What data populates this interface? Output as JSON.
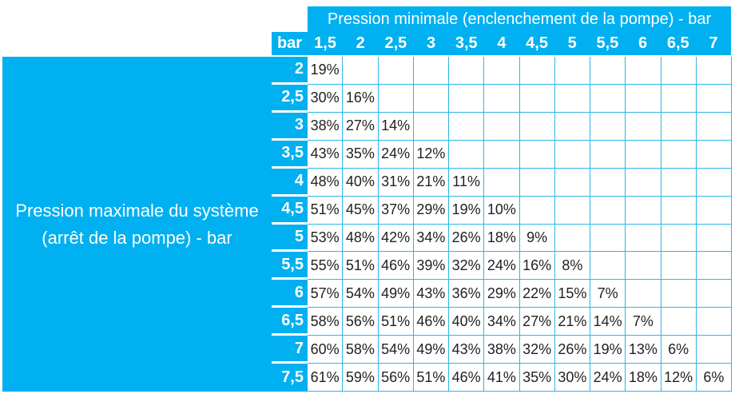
{
  "colors": {
    "accent": "#00b0f0",
    "gridline": "#2eb6ea",
    "header_text": "#ffffff",
    "cell_text": "#222222"
  },
  "table": {
    "top_header": "Pression minimale (enclenchement de la pompe) - bar",
    "corner_label": "bar",
    "col_headers": [
      "1,5",
      "2",
      "2,5",
      "3",
      "3,5",
      "4",
      "4,5",
      "5",
      "5,5",
      "6",
      "6,5",
      "7"
    ],
    "left_label_line1": "Pression maximale du système",
    "left_label_line2": "(arrêt de la pompe) - bar",
    "rows": [
      {
        "header": "2",
        "values": [
          "19%"
        ]
      },
      {
        "header": "2,5",
        "values": [
          "30%",
          "16%"
        ]
      },
      {
        "header": "3",
        "values": [
          "38%",
          "27%",
          "14%"
        ]
      },
      {
        "header": "3,5",
        "values": [
          "43%",
          "35%",
          "24%",
          "12%"
        ]
      },
      {
        "header": "4",
        "values": [
          "48%",
          "40%",
          "31%",
          "21%",
          "11%"
        ]
      },
      {
        "header": "4,5",
        "values": [
          "51%",
          "45%",
          "37%",
          "29%",
          "19%",
          "10%"
        ]
      },
      {
        "header": "5",
        "values": [
          "53%",
          "48%",
          "42%",
          "34%",
          "26%",
          "18%",
          "9%"
        ]
      },
      {
        "header": "5,5",
        "values": [
          "55%",
          "51%",
          "46%",
          "39%",
          "32%",
          "24%",
          "16%",
          "8%"
        ]
      },
      {
        "header": "6",
        "values": [
          "57%",
          "54%",
          "49%",
          "43%",
          "36%",
          "29%",
          "22%",
          "15%",
          "7%"
        ]
      },
      {
        "header": "6,5",
        "values": [
          "58%",
          "56%",
          "51%",
          "46%",
          "40%",
          "34%",
          "27%",
          "21%",
          "14%",
          "7%"
        ]
      },
      {
        "header": "7",
        "values": [
          "60%",
          "58%",
          "54%",
          "49%",
          "43%",
          "38%",
          "32%",
          "26%",
          "19%",
          "13%",
          "6%"
        ]
      },
      {
        "header": "7,5",
        "values": [
          "61%",
          "59%",
          "56%",
          "51%",
          "46%",
          "41%",
          "35%",
          "30%",
          "24%",
          "18%",
          "12%",
          "6%"
        ]
      }
    ]
  },
  "chart_data": {
    "type": "table",
    "title": "Pression minimale (enclenchement de la pompe) - bar",
    "column_axis_label": "Pression minimale (enclenchement de la pompe) - bar",
    "row_axis_label": "Pression maximale du système (arrêt de la pompe) - bar",
    "unit": "bar",
    "columns_bar": [
      1.5,
      2,
      2.5,
      3,
      3.5,
      4,
      4.5,
      5,
      5.5,
      6,
      6.5,
      7
    ],
    "rows_bar": [
      2,
      2.5,
      3,
      3.5,
      4,
      4.5,
      5,
      5.5,
      6,
      6.5,
      7,
      7.5
    ],
    "values_percent": [
      [
        19
      ],
      [
        30,
        16
      ],
      [
        38,
        27,
        14
      ],
      [
        43,
        35,
        24,
        12
      ],
      [
        48,
        40,
        31,
        21,
        11
      ],
      [
        51,
        45,
        37,
        29,
        19,
        10
      ],
      [
        53,
        48,
        42,
        34,
        26,
        18,
        9
      ],
      [
        55,
        51,
        46,
        39,
        32,
        24,
        16,
        8
      ],
      [
        57,
        54,
        49,
        43,
        36,
        29,
        22,
        15,
        7
      ],
      [
        58,
        56,
        51,
        46,
        40,
        34,
        27,
        21,
        14,
        7
      ],
      [
        60,
        58,
        54,
        49,
        43,
        38,
        32,
        26,
        19,
        13,
        6
      ],
      [
        61,
        59,
        56,
        51,
        46,
        41,
        35,
        30,
        24,
        18,
        12,
        6
      ]
    ]
  }
}
